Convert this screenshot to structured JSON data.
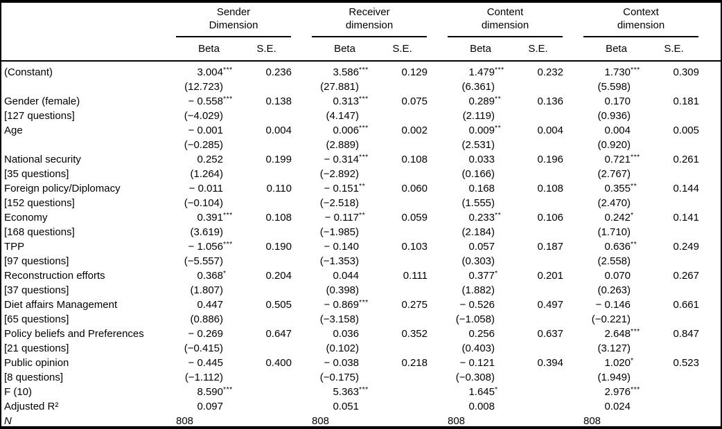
{
  "table": {
    "groups": [
      {
        "line1": "Sender",
        "line2": "Dimension",
        "beta": "Beta",
        "se": "S.E."
      },
      {
        "line1": "Receiver",
        "line2": "dimension",
        "beta": "Beta",
        "se": "S.E."
      },
      {
        "line1": "Content",
        "line2": "dimension",
        "beta": "Beta",
        "se": "S.E."
      },
      {
        "line1": "Context",
        "line2": "dimension",
        "beta": "Beta",
        "se": "S.E."
      }
    ],
    "rows": [
      {
        "type": "coef",
        "label": "(Constant)",
        "sub": "",
        "cells": [
          {
            "beta": "3.004",
            "stars": "***",
            "t": "(12.723)",
            "se": "0.236"
          },
          {
            "beta": "3.586",
            "stars": "***",
            "t": "(27.881)",
            "se": "0.129"
          },
          {
            "beta": "1.479",
            "stars": "***",
            "t": "(6.361)",
            "se": "0.232"
          },
          {
            "beta": "1.730",
            "stars": "***",
            "t": "(5.598)",
            "se": "0.309"
          }
        ]
      },
      {
        "type": "coef",
        "label": "Gender (female)",
        "sub": "[127 questions]",
        "cells": [
          {
            "beta": "− 0.558",
            "stars": "***",
            "t": "(−4.029)",
            "se": "0.138"
          },
          {
            "beta": "0.313",
            "stars": "***",
            "t": "(4.147)",
            "se": "0.075"
          },
          {
            "beta": "0.289",
            "stars": "**",
            "t": "(2.119)",
            "se": "0.136"
          },
          {
            "beta": "0.170",
            "stars": "",
            "t": "(0.936)",
            "se": "0.181"
          }
        ]
      },
      {
        "type": "coef",
        "label": "Age",
        "sub": "",
        "cells": [
          {
            "beta": "− 0.001",
            "stars": "",
            "t": "(−0.285)",
            "se": "0.004"
          },
          {
            "beta": "0.006",
            "stars": "***",
            "t": "(2.889)",
            "se": "0.002"
          },
          {
            "beta": "0.009",
            "stars": "**",
            "t": "(2.531)",
            "se": "0.004"
          },
          {
            "beta": "0.004",
            "stars": "",
            "t": "(0.920)",
            "se": "0.005"
          }
        ]
      },
      {
        "type": "coef",
        "label": "National security",
        "sub": "[35 questions]",
        "cells": [
          {
            "beta": "0.252",
            "stars": "",
            "t": "(1.264)",
            "se": "0.199"
          },
          {
            "beta": "− 0.314",
            "stars": "***",
            "t": "(−2.892)",
            "se": "0.108"
          },
          {
            "beta": "0.033",
            "stars": "",
            "t": "(0.166)",
            "se": "0.196"
          },
          {
            "beta": "0.721",
            "stars": "***",
            "t": "(2.767)",
            "se": "0.261"
          }
        ]
      },
      {
        "type": "coef",
        "label": "Foreign policy/Diplomacy",
        "sub": "[152 questions]",
        "cells": [
          {
            "beta": "− 0.011",
            "stars": "",
            "t": "(−0.104)",
            "se": "0.110"
          },
          {
            "beta": "− 0.151",
            "stars": "**",
            "t": "(−2.518)",
            "se": "0.060"
          },
          {
            "beta": "0.168",
            "stars": "",
            "t": "(1.555)",
            "se": "0.108"
          },
          {
            "beta": "0.355",
            "stars": "**",
            "t": "(2.470)",
            "se": "0.144"
          }
        ]
      },
      {
        "type": "coef",
        "label": "Economy",
        "sub": "[168 questions]",
        "cells": [
          {
            "beta": "0.391",
            "stars": "***",
            "t": "(3.619)",
            "se": "0.108"
          },
          {
            "beta": "− 0.117",
            "stars": "**",
            "t": "(−1.985)",
            "se": "0.059"
          },
          {
            "beta": "0.233",
            "stars": "**",
            "t": "(2.184)",
            "se": "0.106"
          },
          {
            "beta": "0.242",
            "stars": "*",
            "t": "(1.710)",
            "se": "0.141"
          }
        ]
      },
      {
        "type": "coef",
        "label": "TPP",
        "sub": "[97 questions]",
        "cells": [
          {
            "beta": "− 1.056",
            "stars": "***",
            "t": "(−5.557)",
            "se": "0.190"
          },
          {
            "beta": "− 0.140",
            "stars": "",
            "t": "(−1.353)",
            "se": "0.103"
          },
          {
            "beta": "0.057",
            "stars": "",
            "t": "(0.303)",
            "se": "0.187"
          },
          {
            "beta": "0.636",
            "stars": "**",
            "t": "(2.558)",
            "se": "0.249"
          }
        ]
      },
      {
        "type": "coef",
        "label": "Reconstruction efforts",
        "sub": "[37 questions]",
        "cells": [
          {
            "beta": "0.368",
            "stars": "*",
            "t": "(1.807)",
            "se": "0.204"
          },
          {
            "beta": "0.044",
            "stars": "",
            "t": "(0.398)",
            "se": "0.111"
          },
          {
            "beta": "0.377",
            "stars": "*",
            "t": "(1.882)",
            "se": "0.201"
          },
          {
            "beta": "0.070",
            "stars": "",
            "t": "(0.263)",
            "se": "0.267"
          }
        ]
      },
      {
        "type": "coef",
        "label": "Diet affairs Management",
        "sub": "[65 questions]",
        "cells": [
          {
            "beta": "0.447",
            "stars": "",
            "t": "(0.886)",
            "se": "0.505"
          },
          {
            "beta": "− 0.869",
            "stars": "***",
            "t": "(−3.158)",
            "se": "0.275"
          },
          {
            "beta": "− 0.526",
            "stars": "",
            "t": "(−1.058)",
            "se": "0.497"
          },
          {
            "beta": "− 0.146",
            "stars": "",
            "t": "(−0.221)",
            "se": "0.661"
          }
        ]
      },
      {
        "type": "coef",
        "label": "Policy beliefs and Preferences",
        "sub": "[21 questions]",
        "cells": [
          {
            "beta": "− 0.269",
            "stars": "",
            "t": "(−0.415)",
            "se": "0.647"
          },
          {
            "beta": "0.036",
            "stars": "",
            "t": "(0.102)",
            "se": "0.352"
          },
          {
            "beta": "0.256",
            "stars": "",
            "t": "(0.403)",
            "se": "0.637"
          },
          {
            "beta": "2.648",
            "stars": "***",
            "t": "(3.127)",
            "se": "0.847"
          }
        ]
      },
      {
        "type": "coef",
        "label": "Public opinion",
        "sub": "[8 questions]",
        "cells": [
          {
            "beta": "− 0.445",
            "stars": "",
            "t": "(−1.112)",
            "se": "0.400"
          },
          {
            "beta": "− 0.038",
            "stars": "",
            "t": "(−0.175)",
            "se": "0.218"
          },
          {
            "beta": "− 0.121",
            "stars": "",
            "t": "(−0.308)",
            "se": "0.394"
          },
          {
            "beta": "1.020",
            "stars": "*",
            "t": "(1.949)",
            "se": "0.523"
          }
        ]
      },
      {
        "type": "stat",
        "label": "F (10)",
        "cells": [
          {
            "beta": "8.590",
            "stars": "***",
            "se": ""
          },
          {
            "beta": "5.363",
            "stars": "***",
            "se": ""
          },
          {
            "beta": "1.645",
            "stars": "*",
            "se": ""
          },
          {
            "beta": "2.976",
            "stars": "***",
            "se": ""
          }
        ]
      },
      {
        "type": "stat",
        "label": "Adjusted R²",
        "cells": [
          {
            "beta": "0.097",
            "stars": "",
            "se": ""
          },
          {
            "beta": "0.051",
            "stars": "",
            "se": ""
          },
          {
            "beta": "0.008",
            "stars": "",
            "se": ""
          },
          {
            "beta": "0.024",
            "stars": "",
            "se": ""
          }
        ]
      },
      {
        "type": "n",
        "label": "N",
        "cells": [
          {
            "beta": "808",
            "stars": "",
            "se": ""
          },
          {
            "beta": "808",
            "stars": "",
            "se": ""
          },
          {
            "beta": "808",
            "stars": "",
            "se": ""
          },
          {
            "beta": "808",
            "stars": "",
            "se": ""
          }
        ]
      }
    ]
  }
}
